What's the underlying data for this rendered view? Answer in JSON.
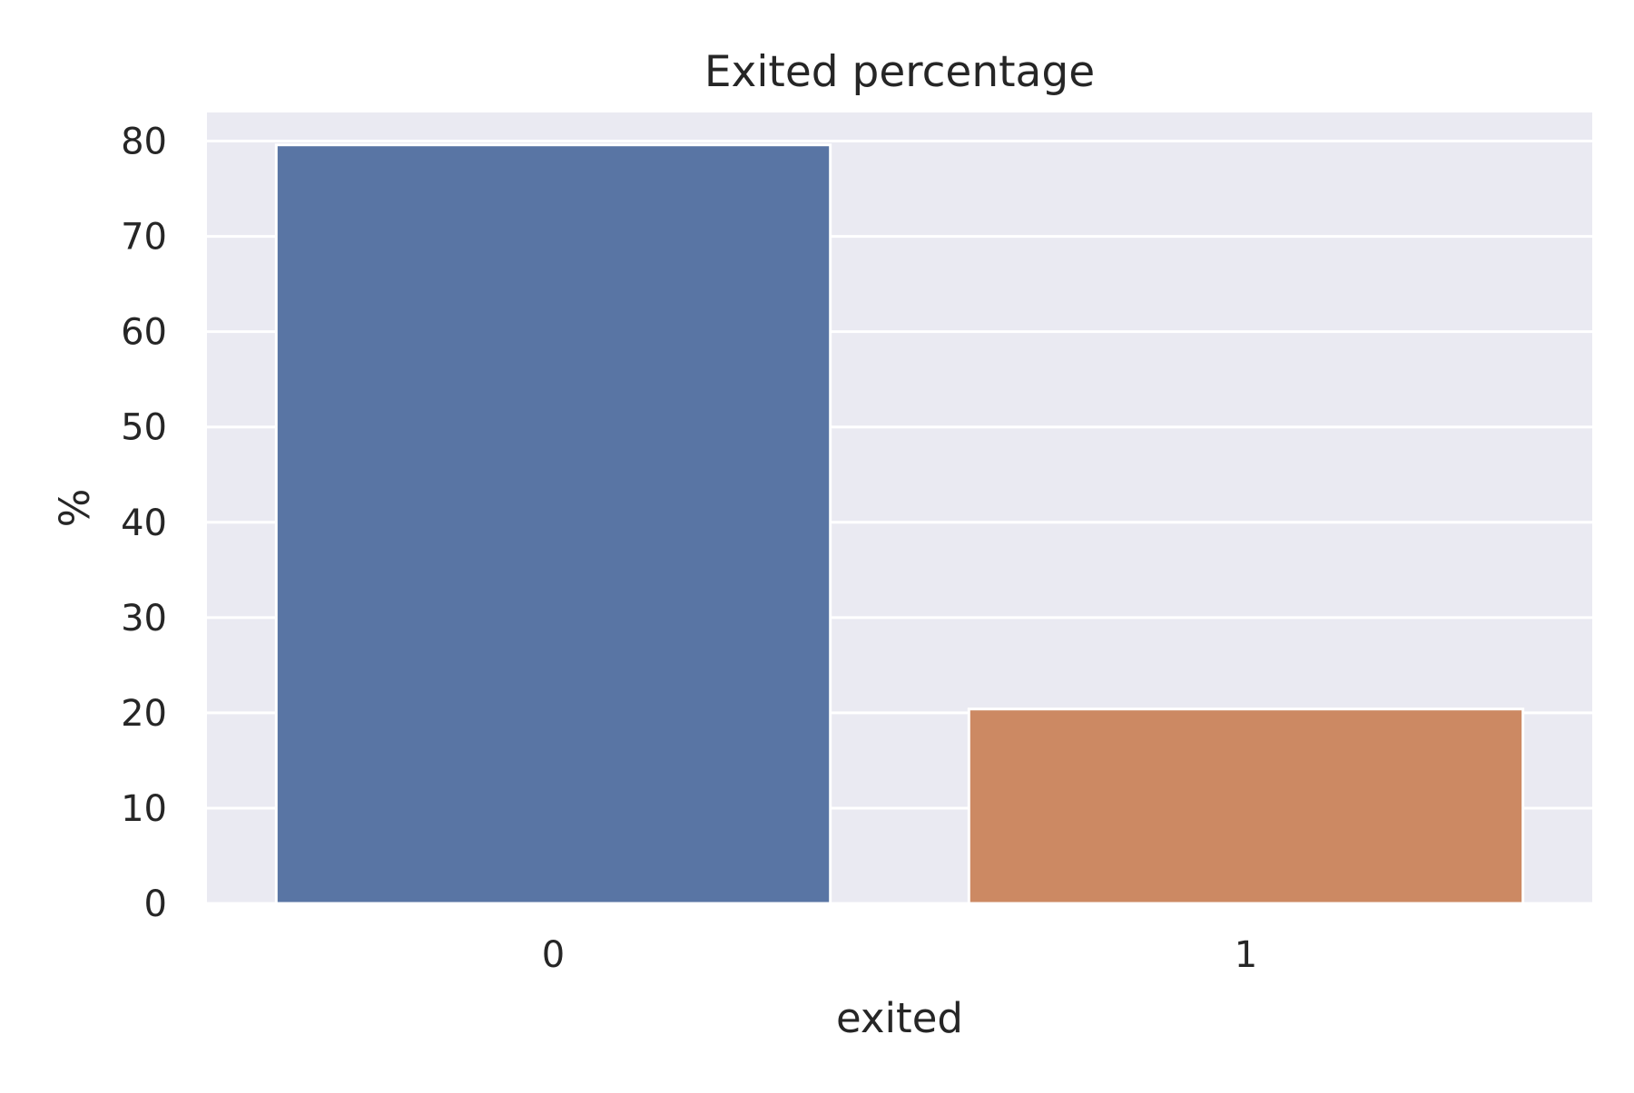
{
  "chart_data": {
    "type": "bar",
    "title": "Exited percentage",
    "xlabel": "exited",
    "ylabel": "%",
    "categories": [
      "0",
      "1"
    ],
    "values": [
      79.6,
      20.4
    ],
    "ylim": [
      0,
      83
    ],
    "yticks": [
      0,
      10,
      20,
      30,
      40,
      50,
      60,
      70,
      80
    ],
    "grid": true,
    "colors": {
      "plot_background": "#eaeaf2",
      "grid": "#ffffff",
      "bars": [
        "#5975a4",
        "#cc8963"
      ],
      "text": "#262626"
    }
  }
}
